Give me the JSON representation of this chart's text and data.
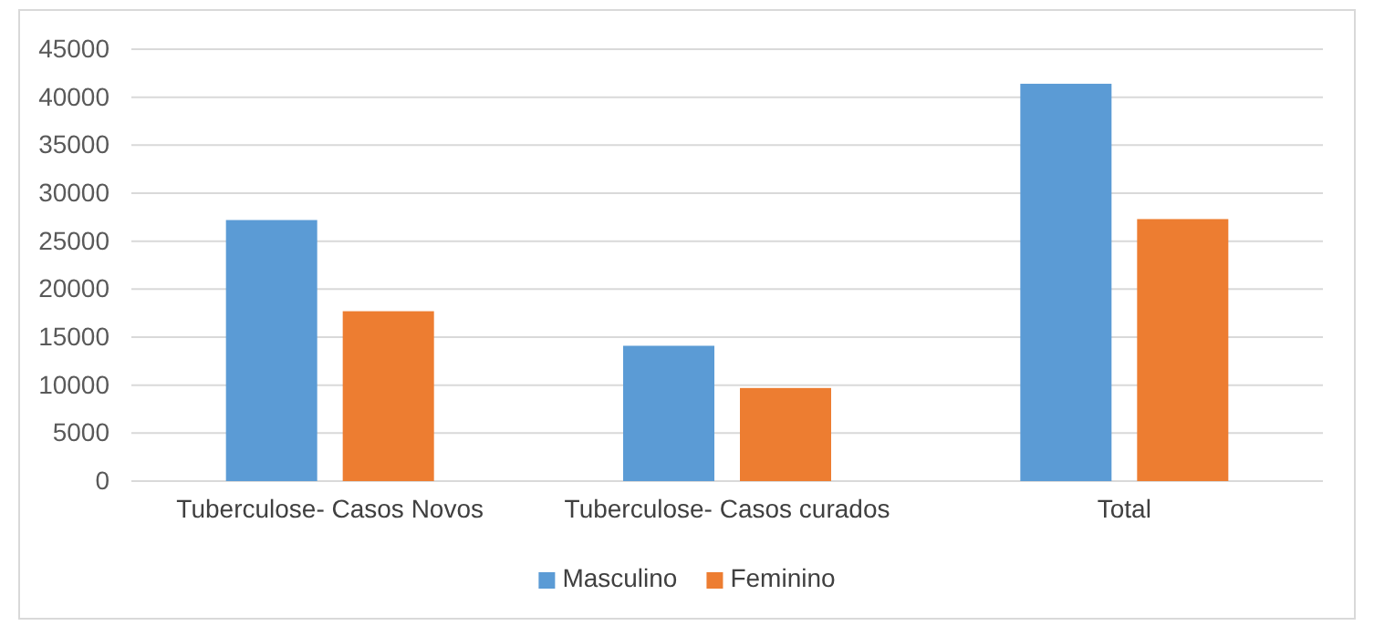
{
  "chart_data": {
    "type": "bar",
    "categories": [
      "Tuberculose- Casos Novos",
      "Tuberculose- Casos curados",
      "Total"
    ],
    "series": [
      {
        "name": "Masculino",
        "color": "#5b9bd5",
        "values": [
          27200,
          14100,
          41400
        ]
      },
      {
        "name": "Feminino",
        "color": "#ed7d31",
        "values": [
          17700,
          9700,
          27300
        ]
      }
    ],
    "ylim": [
      0,
      45000
    ],
    "yticks": [
      0,
      5000,
      10000,
      15000,
      20000,
      25000,
      30000,
      35000,
      40000,
      45000
    ],
    "grid": "y",
    "legend": "bottom"
  }
}
